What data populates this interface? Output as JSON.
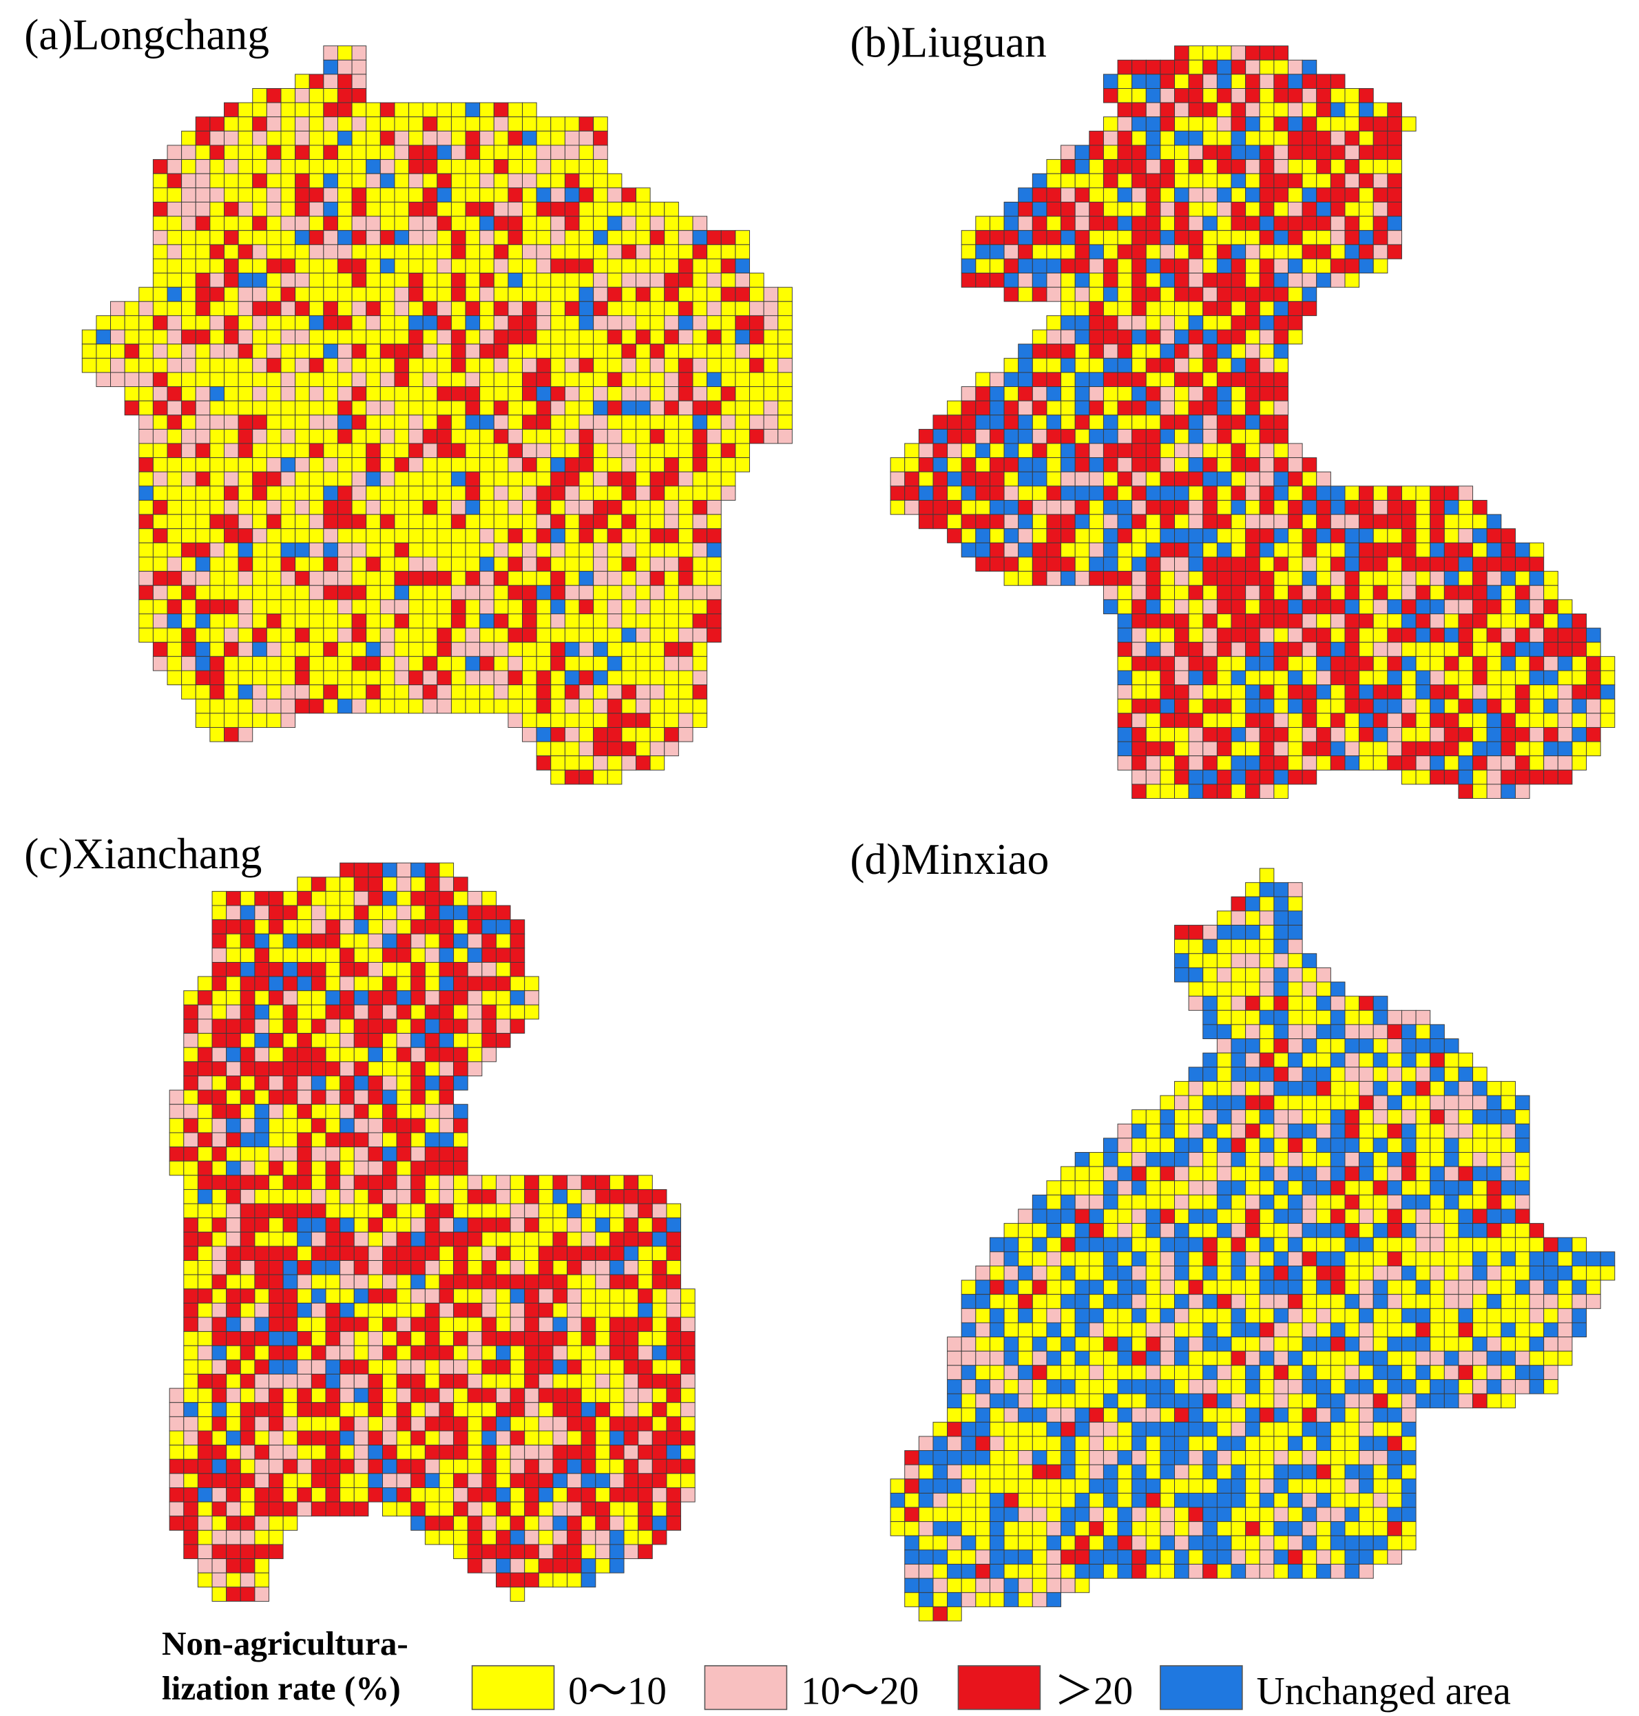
{
  "panels": [
    {
      "label": "(a)Longchang"
    },
    {
      "label": "(b)Liuguan"
    },
    {
      "label": "(c)Xianchang"
    },
    {
      "label": "(d)Minxiao"
    }
  ],
  "legend": {
    "title": [
      "Non-agricultura-",
      "lization rate (%)"
    ],
    "items": [
      {
        "label": "0～10",
        "color": "#ffff00"
      },
      {
        "label": "10～20",
        "color": "#f8c0c0"
      },
      {
        "label": "＞20",
        "color": "#e8141c"
      },
      {
        "label": "Unchanged area",
        "color": "#1f78e0"
      }
    ]
  }
}
